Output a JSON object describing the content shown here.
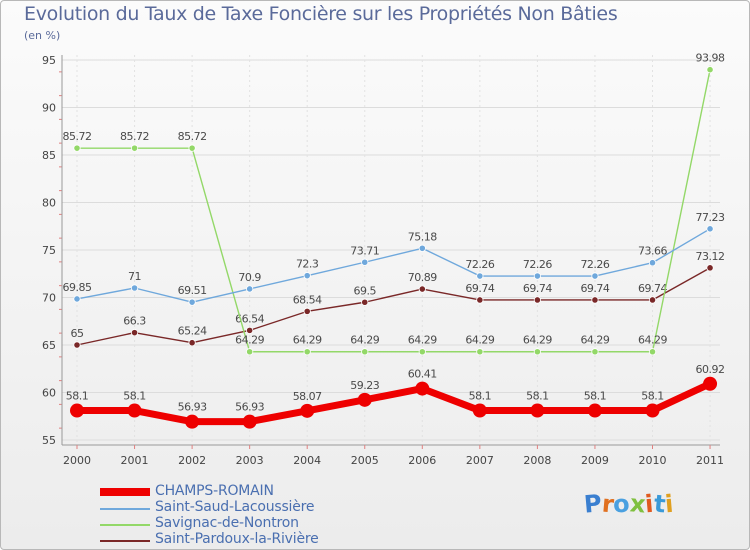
{
  "header": {
    "title": "Evolution du Taux de Taxe Foncière sur les Propriétés Non Bâties",
    "unit": "(en %)"
  },
  "logo": {
    "text": "Proxiti",
    "letter_colors": [
      "#3a7fd0",
      "#e07020",
      "#4aa0e0",
      "#80c040",
      "#e05a20",
      "#3a9ad8",
      "#e0a020"
    ]
  },
  "chart_data": {
    "type": "line",
    "title": "Evolution du Taux de Taxe Foncière sur les Propriétés Non Bâties",
    "ylabel": "(en %)",
    "xlabel": "",
    "x": [
      "2000",
      "2001",
      "2002",
      "2003",
      "2004",
      "2005",
      "2006",
      "2007",
      "2008",
      "2009",
      "2010",
      "2011"
    ],
    "ylim": [
      55,
      95
    ],
    "yticks": [
      "55",
      "60",
      "65",
      "70",
      "75",
      "80",
      "85",
      "90",
      "95"
    ],
    "grid": true,
    "legend_position": "bottom",
    "series": [
      {
        "name": "CHAMPS-ROMAIN",
        "color": "#ee0000",
        "values": [
          58.1,
          58.1,
          56.93,
          56.93,
          58.07,
          59.23,
          60.41,
          58.1,
          58.1,
          58.1,
          58.1,
          60.92
        ],
        "labels": [
          "58.1",
          "58.1",
          "56.93",
          "56.93",
          "58.07",
          "59.23",
          "60.41",
          "58.1",
          "58.1",
          "58.1",
          "58.1",
          "60.92"
        ]
      },
      {
        "name": "Saint-Saud-Lacoussière",
        "color": "#6fa8dc",
        "values": [
          69.85,
          71,
          69.51,
          70.9,
          72.3,
          73.71,
          75.18,
          72.26,
          72.26,
          72.26,
          73.66,
          77.23
        ],
        "labels": [
          "69.85",
          "71",
          "69.51",
          "70.9",
          "72.3",
          "73.71",
          "75.18",
          "72.26",
          "72.26",
          "72.26",
          "73.66",
          "77.23"
        ]
      },
      {
        "name": "Savignac-de-Nontron",
        "color": "#93d868",
        "values": [
          85.72,
          85.72,
          85.72,
          64.29,
          64.29,
          64.29,
          64.29,
          64.29,
          64.29,
          64.29,
          64.29,
          93.98
        ],
        "labels": [
          "85.72",
          "85.72",
          "85.72",
          "64.29",
          "64.29",
          "64.29",
          "64.29",
          "64.29",
          "64.29",
          "64.29",
          "64.29",
          "93.98"
        ]
      },
      {
        "name": "Saint-Pardoux-la-Rivière",
        "color": "#7a2828",
        "values": [
          65,
          66.3,
          65.24,
          66.54,
          68.54,
          69.5,
          70.89,
          69.74,
          69.74,
          69.74,
          69.74,
          73.12
        ],
        "labels": [
          "65",
          "66.3",
          "65.24",
          "66.54",
          "68.54",
          "69.5",
          "70.89",
          "69.74",
          "69.74",
          "69.74",
          "69.74",
          "73.12"
        ]
      }
    ]
  }
}
